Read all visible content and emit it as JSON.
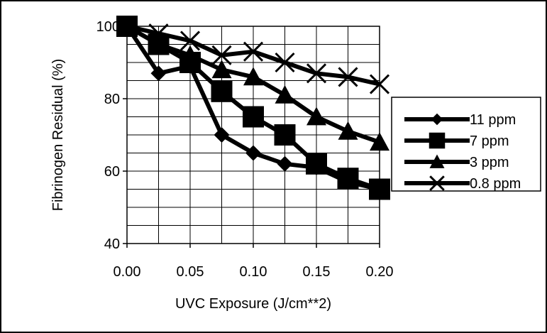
{
  "chart_data": {
    "type": "line",
    "title": "",
    "xlabel": "UVC Exposure (J/cm**2)",
    "ylabel": "Fibrinogen Residual (%)",
    "xlim": [
      0,
      0.2
    ],
    "ylim": [
      40,
      100
    ],
    "x_ticks": [
      "0.00",
      "0.05",
      "0.10",
      "0.15",
      "0.20"
    ],
    "y_ticks": [
      "40",
      "60",
      "80",
      "100"
    ],
    "grid": true,
    "legend_position": "right",
    "x": [
      0,
      0.025,
      0.05,
      0.075,
      0.1,
      0.125,
      0.15,
      0.175,
      0.2
    ],
    "series": [
      {
        "name": "11 ppm",
        "marker": "diamond",
        "color": "#000000",
        "values": [
          100,
          87,
          89,
          70,
          65,
          62,
          61,
          57,
          55
        ]
      },
      {
        "name": "7 ppm",
        "marker": "square",
        "color": "#000000",
        "values": [
          100,
          95,
          90,
          82,
          75,
          70,
          62,
          58,
          55
        ]
      },
      {
        "name": "3 ppm",
        "marker": "triangle",
        "color": "#000000",
        "values": [
          100,
          95,
          92,
          88,
          86,
          81,
          75,
          71,
          68
        ]
      },
      {
        "name": "0.8 ppm",
        "marker": "x",
        "color": "#000000",
        "values": [
          100,
          98,
          96,
          92,
          93,
          90,
          87,
          86,
          84
        ]
      }
    ]
  }
}
